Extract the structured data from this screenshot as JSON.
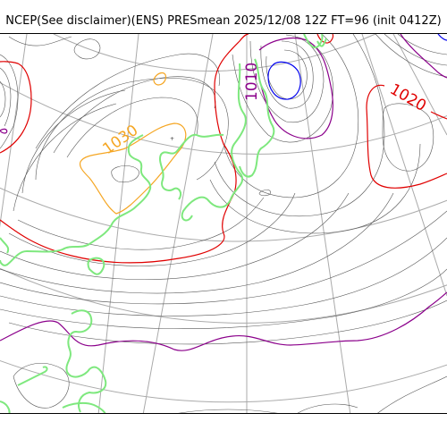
{
  "title": "NCEP(See disclaimer)(ENS) PRESmean 2025/12/08 12Z FT=96 (init 0412Z)",
  "contour_labels": {
    "l1030": "1030",
    "l1010": "1010",
    "l1020": "1020"
  },
  "colors": {
    "isobar": "#555555",
    "contour_1030": "#f5a623",
    "contour_1020": "#e00000",
    "contour_1010": "#8b008b",
    "contour_low": "#0000ee",
    "coastline": "#7ee87e",
    "graticule": "#aaaaaa"
  }
}
